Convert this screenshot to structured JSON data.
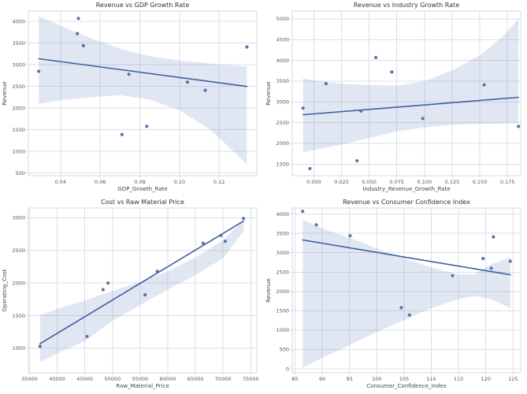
{
  "figure": {
    "background": "#ffffff",
    "layout": "2x2-scatter-grid"
  },
  "colors": {
    "point": "#4c6fa8",
    "line": "#3e5f9e",
    "band": "rgba(76,114,176,0.17)",
    "grid": "#dcdfe8",
    "border": "#d6d9e2",
    "tick_text": "#555555",
    "label_text": "#444444",
    "title_text": "#333333",
    "plot_bg": "#ffffff"
  },
  "chart_data": [
    {
      "type": "scatter",
      "title": "Revenue vs GDP Growth Rate",
      "xlabel": "GDP_Growth_Rate",
      "ylabel": "Revenue",
      "grid": true,
      "legend": null,
      "xlim": [
        0.0238,
        0.139
      ],
      "ylim": [
        440,
        4240
      ],
      "xticks": {
        "values": [
          0.04,
          0.06,
          0.08,
          0.1,
          0.12
        ],
        "labels": [
          "0.04",
          "0.06",
          "0.08",
          "0.10",
          "0.12"
        ]
      },
      "yticks": {
        "values": [
          500,
          1000,
          1500,
          2000,
          2500,
          3000,
          3500,
          4000
        ],
        "labels": [
          "500",
          "1000",
          "1500",
          "2000",
          "2500",
          "3000",
          "3500",
          "4000"
        ]
      },
      "points": {
        "x": [
          0.029,
          0.049,
          0.0485,
          0.0515,
          0.071,
          0.0745,
          0.0835,
          0.104,
          0.113,
          0.134
        ],
        "y": [
          2850,
          4070,
          3720,
          3440,
          1390,
          2780,
          1580,
          2600,
          2410,
          3410
        ]
      },
      "regression": {
        "x": [
          0.029,
          0.134
        ],
        "y": [
          3140,
          2500
        ]
      },
      "ci_band": {
        "x": [
          0.029,
          0.04,
          0.055,
          0.07,
          0.085,
          0.1,
          0.115,
          0.125,
          0.134
        ],
        "hi": [
          4120,
          3900,
          3620,
          3370,
          3200,
          3100,
          3030,
          2990,
          2960
        ],
        "lo": [
          2100,
          2180,
          2250,
          2300,
          2200,
          1950,
          1520,
          1100,
          700
        ]
      }
    },
    {
      "type": "scatter",
      "title": "Revenue vs Industry Growth Rate",
      "xlabel": "Industry_Revenue_Growth_Rate",
      "ylabel": "Revenue",
      "grid": true,
      "legend": null,
      "xlim": [
        -0.0195,
        0.187
      ],
      "ylim": [
        1220,
        5190
      ],
      "xticks": {
        "values": [
          0.0,
          0.025,
          0.05,
          0.075,
          0.1,
          0.125,
          0.15,
          0.175
        ],
        "labels": [
          "0.000",
          "0.025",
          "0.050",
          "0.075",
          "0.100",
          "0.125",
          "0.150",
          "0.175"
        ]
      },
      "yticks": {
        "values": [
          1500,
          2000,
          2500,
          3000,
          3500,
          4000,
          4500,
          5000
        ],
        "labels": [
          "1500",
          "2000",
          "2500",
          "3000",
          "3500",
          "4000",
          "4500",
          "5000"
        ]
      },
      "points": {
        "x": [
          -0.0098,
          -0.0036,
          0.011,
          0.039,
          0.0425,
          0.056,
          0.0705,
          0.0985,
          0.154,
          0.185
        ],
        "y": [
          2850,
          1390,
          3440,
          1580,
          2780,
          4070,
          3720,
          2600,
          3410,
          2410
        ]
      },
      "regression": {
        "x": [
          -0.0098,
          0.185
        ],
        "y": [
          2690,
          3110
        ]
      },
      "ci_band": {
        "x": [
          -0.0098,
          0.01,
          0.03,
          0.05,
          0.075,
          0.1,
          0.125,
          0.15,
          0.17,
          0.185
        ],
        "hi": [
          3565,
          3480,
          3430,
          3410,
          3390,
          3500,
          3760,
          4120,
          4560,
          5000
        ],
        "lo": [
          1785,
          1890,
          2000,
          2130,
          2290,
          2380,
          2450,
          2470,
          2480,
          2490
        ]
      }
    },
    {
      "type": "scatter",
      "title": "Cost vs Raw Material Price",
      "xlabel": "Raw_Material_Price",
      "ylabel": "Operating_Cost",
      "grid": true,
      "legend": null,
      "xlim": [
        34800,
        76100
      ],
      "ylim": [
        625,
        3150
      ],
      "xticks": {
        "values": [
          35000,
          40000,
          45000,
          50000,
          55000,
          60000,
          65000,
          70000,
          75000
        ],
        "labels": [
          "35000",
          "40000",
          "45000",
          "50000",
          "55000",
          "60000",
          "65000",
          "70000",
          "75000"
        ]
      },
      "yticks": {
        "values": [
          1000,
          1500,
          2000,
          2500,
          3000
        ],
        "labels": [
          "1000",
          "1500",
          "2000",
          "2500",
          "3000"
        ]
      },
      "points": {
        "x": [
          36900,
          45400,
          48300,
          49200,
          55900,
          58100,
          66400,
          69600,
          70400,
          73700
        ],
        "y": [
          1030,
          1180,
          1900,
          2000,
          1820,
          2180,
          2610,
          2730,
          2640,
          2990
        ]
      },
      "regression": {
        "x": [
          36900,
          73700
        ],
        "y": [
          1070,
          2950
        ]
      },
      "ci_band": {
        "x": [
          36900,
          41000,
          45000,
          50000,
          55000,
          60000,
          65000,
          70000,
          73700
        ],
        "hi": [
          1510,
          1630,
          1730,
          1880,
          2020,
          2180,
          2390,
          2660,
          2960
        ],
        "lo": [
          790,
          960,
          1110,
          1420,
          1660,
          1900,
          2120,
          2380,
          2800
        ]
      }
    },
    {
      "type": "scatter",
      "title": "Revenue vs Consumer Confidence Index",
      "xlabel": "Consumer_Confidence_Index",
      "ylabel": "Revenue",
      "grid": true,
      "legend": null,
      "xlim": [
        84.5,
        126.4
      ],
      "ylim": [
        -100,
        4155
      ],
      "xticks": {
        "values": [
          85,
          90,
          95,
          100,
          105,
          110,
          115,
          120,
          125
        ],
        "labels": [
          "85",
          "90",
          "95",
          "100",
          "105",
          "110",
          "115",
          "120",
          "125"
        ]
      },
      "yticks": {
        "values": [
          0,
          500,
          1000,
          1500,
          2000,
          2500,
          3000,
          3500,
          4000
        ],
        "labels": [
          "0",
          "500",
          "1000",
          "1500",
          "2000",
          "2500",
          "3000",
          "3500",
          "4000"
        ]
      },
      "points": {
        "x": [
          86.4,
          88.9,
          95.1,
          104.5,
          106.0,
          113.9,
          119.5,
          121.0,
          121.4,
          124.5
        ],
        "y": [
          4070,
          3720,
          3440,
          1580,
          1390,
          2410,
          2850,
          2600,
          3410,
          2780
        ]
      },
      "regression": {
        "x": [
          86.4,
          124.5
        ],
        "y": [
          3330,
          2430
        ]
      },
      "ci_band": {
        "x": [
          86.4,
          90,
          95,
          100,
          105,
          110,
          115,
          118,
          121,
          124.5
        ],
        "hi": [
          3850,
          3630,
          3390,
          3115,
          2860,
          2620,
          2430,
          2450,
          2700,
          2890
        ],
        "lo": [
          30,
          280,
          610,
          950,
          1260,
          1570,
          1800,
          1880,
          1800,
          1570
        ]
      }
    }
  ]
}
